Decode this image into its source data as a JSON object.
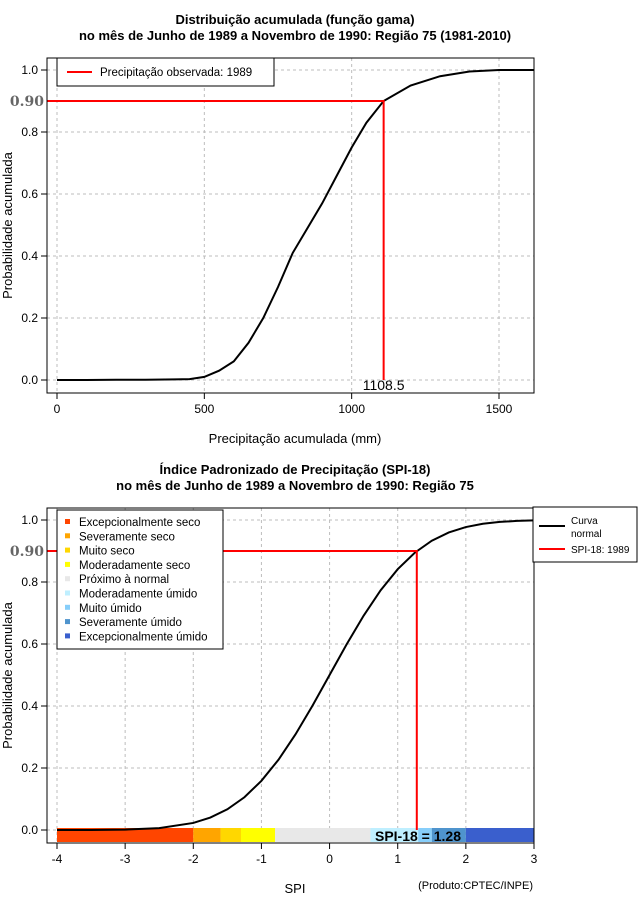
{
  "chart_data": [
    {
      "type": "line",
      "title": "Distribuição acumulada (função gama)",
      "subtitle": "no mês de Junho de 1989 a Novembro de 1990: Região 75 (1981-2010)",
      "xlabel": "Precipitação acumulada (mm)",
      "ylabel": "Probabilidade acumulada",
      "xlim": [
        0,
        1620
      ],
      "ylim": [
        0,
        1.0
      ],
      "xticks": [
        0,
        500,
        1000,
        1500
      ],
      "yticks": [
        "0.0",
        "0.2",
        "0.4",
        "0.6",
        "0.8",
        "1.0"
      ],
      "grid": true,
      "legend": {
        "position": "top-left",
        "entries": [
          "Precipitação observada: 1989"
        ]
      },
      "series": [
        {
          "name": "curve",
          "x": [
            0,
            100,
            200,
            300,
            400,
            450,
            500,
            550,
            600,
            650,
            700,
            750,
            800,
            850,
            900,
            950,
            1000,
            1050,
            1108.5,
            1200,
            1300,
            1400,
            1500,
            1620
          ],
          "y": [
            0,
            0,
            0.001,
            0.001,
            0.002,
            0.003,
            0.01,
            0.03,
            0.06,
            0.12,
            0.2,
            0.3,
            0.41,
            0.49,
            0.57,
            0.66,
            0.75,
            0.83,
            0.9,
            0.95,
            0.98,
            0.995,
            1.0,
            1.0
          ]
        }
      ],
      "observed": {
        "value": 1108.5,
        "label": "1108.5",
        "probability": 0.9,
        "probability_label": "0.90"
      }
    },
    {
      "type": "line",
      "title": "Índice Padronizado de Precipitação (SPI-18)",
      "subtitle": "no mês de Junho de 1989 a Novembro de 1990: Região 75",
      "xlabel": "SPI",
      "ylabel": "Probabilidade acumulada",
      "xlim": [
        -4,
        3
      ],
      "ylim": [
        0,
        1.0
      ],
      "xticks": [
        -4,
        -3,
        -2,
        -1,
        0,
        1,
        2,
        3
      ],
      "yticks": [
        "0.0",
        "0.2",
        "0.4",
        "0.6",
        "0.8",
        "1.0"
      ],
      "grid": true,
      "series": [
        {
          "name": "Curva normal",
          "x": [
            -4,
            -3.5,
            -3,
            -2.5,
            -2,
            -1.75,
            -1.5,
            -1.25,
            -1,
            -0.75,
            -0.5,
            -0.25,
            0,
            0.25,
            0.5,
            0.75,
            1,
            1.25,
            1.5,
            1.75,
            2,
            2.25,
            2.5,
            2.75,
            3
          ],
          "y": [
            3e-05,
            0.0002,
            0.0013,
            0.0062,
            0.0228,
            0.0401,
            0.0668,
            0.1056,
            0.1587,
            0.2266,
            0.3085,
            0.4013,
            0.5,
            0.5987,
            0.6915,
            0.7734,
            0.8413,
            0.8944,
            0.9332,
            0.9599,
            0.9772,
            0.9878,
            0.9938,
            0.997,
            0.9987
          ]
        }
      ],
      "observed": {
        "value": 1.28,
        "probability": 0.9,
        "probability_label": "0.90",
        "label": "SPI-18 = 1.28"
      },
      "categories_legend": {
        "position": "top-left",
        "entries": [
          {
            "label": "Excepcionalmente seco",
            "color": "#ff4500",
            "from": -4,
            "to": -2
          },
          {
            "label": "Severamente seco",
            "color": "#ffa500",
            "from": -2,
            "to": -1.6
          },
          {
            "label": "Muito seco",
            "color": "#ffd700",
            "from": -1.6,
            "to": -1.3
          },
          {
            "label": "Moderadamente seco",
            "color": "#ffff00",
            "from": -1.3,
            "to": -0.8
          },
          {
            "label": "Próximo à normal",
            "color": "#e8e8e8",
            "from": -0.8,
            "to": 0.6
          },
          {
            "label": "Moderadamente úmido",
            "color": "#bfefff",
            "from": 0.6,
            "to": 1.3
          },
          {
            "label": "Muito úmido",
            "color": "#87cefa",
            "from": 1.3,
            "to": 1.5
          },
          {
            "label": "Severamente úmido",
            "color": "#4f94cd",
            "from": 1.5,
            "to": 2.0
          },
          {
            "label": "Excepcionalmente úmido",
            "color": "#3a5fcd",
            "from": 2.0,
            "to": 3.0
          }
        ]
      },
      "series_legend": {
        "position": "outside-top-right",
        "entries": [
          {
            "label": "Curva normal",
            "lines": [
              "Curva",
              "normal"
            ],
            "color": "#000000"
          },
          {
            "label": "SPI-18: 1989",
            "color": "#ff0000"
          }
        ]
      },
      "footer": "(Produto:CPTEC/INPE)"
    }
  ]
}
